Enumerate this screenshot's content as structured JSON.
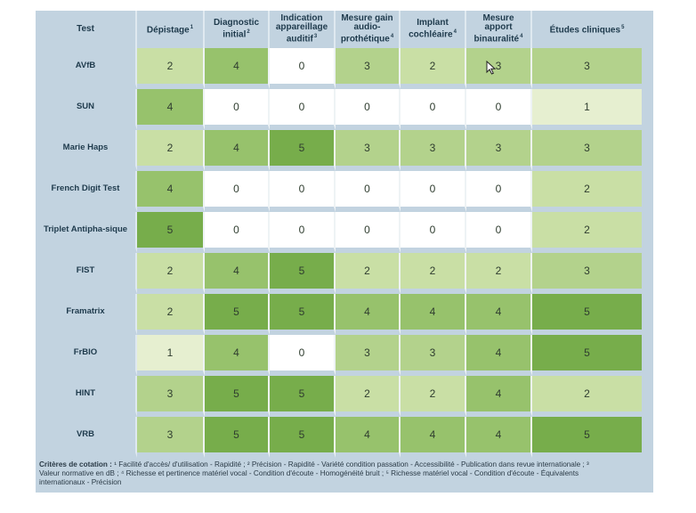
{
  "table": {
    "headers": [
      {
        "label": "Test",
        "sup": ""
      },
      {
        "label": "Dépistage",
        "sup": "1"
      },
      {
        "label": "Diagnostic initial",
        "sup": "2"
      },
      {
        "label": "Indication appareillage auditif",
        "sup": "3"
      },
      {
        "label": "Mesure gain audio-prothétique",
        "sup": "4"
      },
      {
        "label": "Implant cochléaire",
        "sup": "4"
      },
      {
        "label": "Mesure apport binauralité",
        "sup": "4"
      },
      {
        "label": "Études cliniques",
        "sup": "5"
      }
    ],
    "rows": [
      {
        "name": "AVfB",
        "values": [
          "2",
          "4",
          "0",
          "3",
          "2",
          "3",
          "3"
        ]
      },
      {
        "name": "SUN",
        "values": [
          "4",
          "0",
          "0",
          "0",
          "0",
          "0",
          "1"
        ]
      },
      {
        "name": "Marie Haps",
        "values": [
          "2",
          "4",
          "5",
          "3",
          "3",
          "3",
          "3"
        ]
      },
      {
        "name": "French Digit Test",
        "values": [
          "4",
          "0",
          "0",
          "0",
          "0",
          "0",
          "2"
        ]
      },
      {
        "name": "Triplet Antipha-sique",
        "values": [
          "5",
          "0",
          "0",
          "0",
          "0",
          "0",
          "2"
        ]
      },
      {
        "name": "FIST",
        "values": [
          "2",
          "4",
          "5",
          "2",
          "2",
          "2",
          "3"
        ]
      },
      {
        "name": "Framatrix",
        "values": [
          "2",
          "5",
          "5",
          "4",
          "4",
          "4",
          "5"
        ]
      },
      {
        "name": "FrBIO",
        "values": [
          "1",
          "4",
          "0",
          "3",
          "3",
          "4",
          "5"
        ]
      },
      {
        "name": "HINT",
        "values": [
          "3",
          "5",
          "5",
          "2",
          "2",
          "4",
          "2"
        ]
      },
      {
        "name": "VRB",
        "values": [
          "3",
          "5",
          "5",
          "4",
          "4",
          "4",
          "5"
        ]
      }
    ]
  },
  "footnote": {
    "label": "Critères de cotation :",
    "text": "¹ Facilité d'accès/ d'utilisation - Rapidité ; ² Précision - Rapidité - Variété condition passation - Accessibilité - Publication dans revue internationale ; ³ Valeur normative en dB ; ⁴ Richesse et pertinence matériel vocal - Condition d'écoute - Homogénéité bruit ; ⁵ Richesse matériel vocal - Condition d'écoute - Équivalents internationaux - Précision"
  },
  "colors": {
    "panel": "#c2d3e0",
    "score_0": "#ffffff",
    "score_1": "#e6efd0",
    "score_2": "#c9dfa5",
    "score_3": "#b3d28c",
    "score_4": "#97c26c",
    "score_5": "#77ad4b"
  },
  "icons": {
    "pointer": "mouse-cursor-icon"
  }
}
